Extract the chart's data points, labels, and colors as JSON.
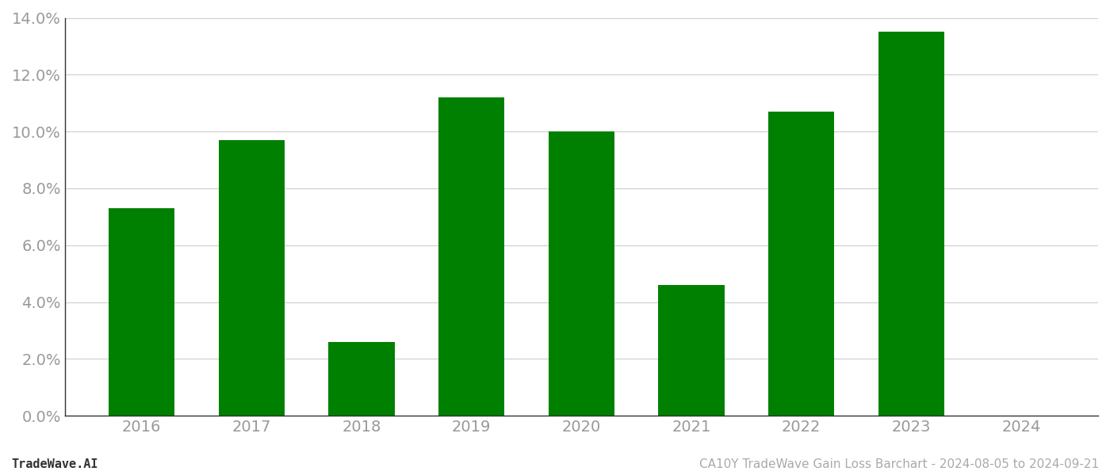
{
  "years": [
    2016,
    2017,
    2018,
    2019,
    2020,
    2021,
    2022,
    2023,
    2024
  ],
  "values": [
    0.073,
    0.097,
    0.026,
    0.112,
    0.1,
    0.046,
    0.107,
    0.135,
    null
  ],
  "bar_color": "#008000",
  "background_color": "#ffffff",
  "grid_color": "#cccccc",
  "ylim": [
    0,
    0.14
  ],
  "yticks": [
    0.0,
    0.02,
    0.04,
    0.06,
    0.08,
    0.1,
    0.12,
    0.14
  ],
  "tick_fontsize": 14,
  "tick_color": "#999999",
  "title_text": "CA10Y TradeWave Gain Loss Barchart - 2024-08-05 to 2024-09-21",
  "watermark_text": "TradeWave.AI",
  "bar_width": 0.6,
  "footer_fontsize": 11,
  "footer_color": "#aaaaaa"
}
